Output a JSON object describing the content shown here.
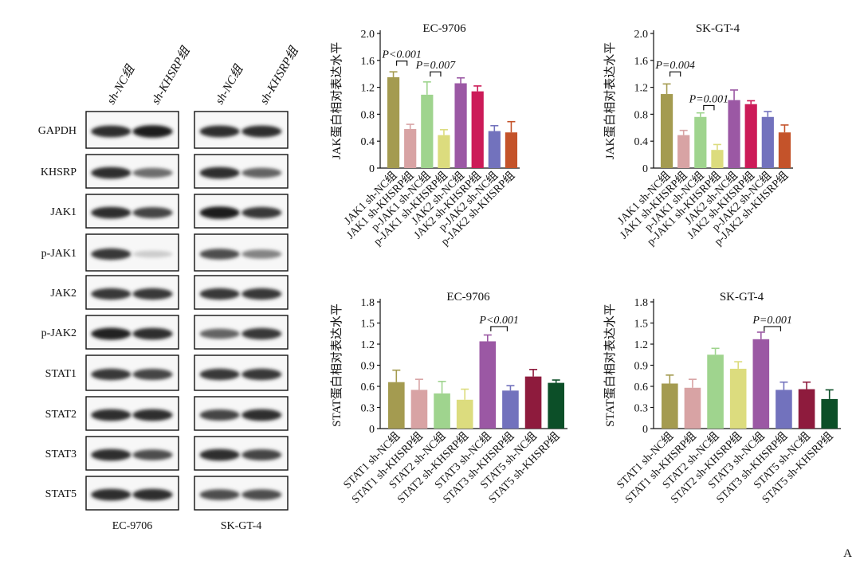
{
  "blot": {
    "lane_headers": [
      "sh-NC组",
      "sh-KHSRP组",
      "sh-NC组",
      "sh-KHSRP组"
    ],
    "cell_lines": [
      "EC-9706",
      "SK-GT-4"
    ],
    "proteins": [
      "GAPDH",
      "KHSRP",
      "JAK1",
      "p-JAK1",
      "JAK2",
      "p-JAK2",
      "STAT1",
      "STAT2",
      "STAT3",
      "STAT5"
    ],
    "band_intensity": {
      "EC-9706": [
        [
          0.85,
          0.95
        ],
        [
          0.85,
          0.55
        ],
        [
          0.85,
          0.75
        ],
        [
          0.8,
          0.1
        ],
        [
          0.8,
          0.8
        ],
        [
          0.9,
          0.85
        ],
        [
          0.8,
          0.75
        ],
        [
          0.85,
          0.85
        ],
        [
          0.85,
          0.7
        ],
        [
          0.85,
          0.85
        ]
      ],
      "SK-GT-4": [
        [
          0.85,
          0.85
        ],
        [
          0.85,
          0.6
        ],
        [
          0.95,
          0.8
        ],
        [
          0.7,
          0.45
        ],
        [
          0.8,
          0.8
        ],
        [
          0.6,
          0.8
        ],
        [
          0.8,
          0.8
        ],
        [
          0.75,
          0.85
        ],
        [
          0.85,
          0.75
        ],
        [
          0.7,
          0.7
        ]
      ]
    }
  },
  "palette": [
    "#a49b50",
    "#d8a3a4",
    "#9fd48e",
    "#dcdc7e",
    "#9b58a4",
    "#cc1b58",
    "#7272bd",
    "#c4532a",
    "#8e1b3d",
    "#0c4f28"
  ],
  "figure_letter": "A",
  "chart_data": [
    {
      "type": "bar",
      "title": "EC-9706",
      "ylabel": "JAK蛋白相对表达水平",
      "ylim": [
        0,
        2.0
      ],
      "yticks": [
        "0",
        "0.4",
        "0.8",
        "1.2",
        "1.6",
        "2.0"
      ],
      "categories": [
        "JAK1 sh-NC组",
        "JAK1 sh-KHSRP组",
        "p-JAK1 sh-NC组",
        "p-JAK1 sh-KHSRP组",
        "JAK2 sh-NC组",
        "JAK2 sh-KHSRP组",
        "p-JAK2 sh-NC组",
        "p-JAK2 sh-KHSRP组"
      ],
      "values": [
        1.35,
        0.58,
        1.09,
        0.49,
        1.26,
        1.14,
        0.55,
        0.53
      ],
      "errors": [
        0.08,
        0.07,
        0.19,
        0.08,
        0.08,
        0.08,
        0.08,
        0.16
      ],
      "colors": [
        0,
        1,
        2,
        3,
        4,
        5,
        6,
        7
      ],
      "annotations": [
        {
          "text": "P<0.001",
          "from": 0,
          "to": 1,
          "level": 1.59
        },
        {
          "text": "P=0.007",
          "from": 2,
          "to": 3,
          "level": 1.43
        }
      ]
    },
    {
      "type": "bar",
      "title": "SK-GT-4",
      "ylabel": "JAK蛋白相对表达水平",
      "ylim": [
        0,
        2.0
      ],
      "yticks": [
        "0",
        "0.4",
        "0.8",
        "1.2",
        "1.6",
        "2.0"
      ],
      "categories": [
        "JAK1 sh-NC组",
        "JAK1 sh-KHSRP组",
        "p-JAK1 sh-NC组",
        "p-JAK1 sh-KHSRP组",
        "JAK2 sh-NC组",
        "JAK2 sh-KHSRP组",
        "p-JAK2 sh-NC组",
        "p-JAK2 sh-KHSRP组"
      ],
      "values": [
        1.1,
        0.49,
        0.76,
        0.27,
        1.01,
        0.95,
        0.76,
        0.53
      ],
      "errors": [
        0.15,
        0.07,
        0.06,
        0.08,
        0.15,
        0.05,
        0.08,
        0.11
      ],
      "colors": [
        0,
        1,
        2,
        3,
        4,
        5,
        6,
        7
      ],
      "annotations": [
        {
          "text": "P=0.004",
          "from": 0,
          "to": 1,
          "level": 1.43
        },
        {
          "text": "P=0.001",
          "from": 2,
          "to": 3,
          "level": 0.93
        }
      ]
    },
    {
      "type": "bar",
      "title": "EC-9706",
      "ylabel": "STAT蛋白相对表达水平",
      "ylim": [
        0,
        1.8
      ],
      "yticks": [
        "0",
        "0.3",
        "0.6",
        "0.9",
        "1.2",
        "1.5",
        "1.8"
      ],
      "categories": [
        "STAT1 sh-NC组",
        "STAT1 sh-KHSRP组",
        "STAT2 sh-NC组",
        "STAT2 sh-KHSRP组",
        "STAT3 sh-NC组",
        "STAT3 sh-KHSRP组",
        "STAT5 sh-NC组",
        "STAT5 sh-KHSRP组"
      ],
      "values": [
        0.66,
        0.55,
        0.5,
        0.41,
        1.24,
        0.54,
        0.74,
        0.65
      ],
      "errors": [
        0.17,
        0.15,
        0.17,
        0.15,
        0.09,
        0.07,
        0.1,
        0.04
      ],
      "colors": [
        0,
        1,
        2,
        3,
        4,
        6,
        8,
        9
      ],
      "annotations": [
        {
          "text": "P<0.001",
          "from": 4,
          "to": 5,
          "level": 1.45
        }
      ]
    },
    {
      "type": "bar",
      "title": "SK-GT-4",
      "ylabel": "STAT蛋白相对表达水平",
      "ylim": [
        0,
        1.8
      ],
      "yticks": [
        "0",
        "0.3",
        "0.6",
        "0.9",
        "1.2",
        "1.5",
        "1.8"
      ],
      "categories": [
        "STAT1 sh-NC组",
        "STAT1 sh-KHSRP组",
        "STAT2 sh-NC组",
        "STAT2 sh-KHSRP组",
        "STAT3 sh-NC组",
        "STAT3 sh-KHSRP组",
        "STAT5 sh-NC组",
        "STAT5 sh-KHSRP组"
      ],
      "values": [
        0.64,
        0.58,
        1.05,
        0.85,
        1.27,
        0.55,
        0.56,
        0.42
      ],
      "errors": [
        0.12,
        0.12,
        0.09,
        0.1,
        0.1,
        0.11,
        0.1,
        0.13
      ],
      "colors": [
        0,
        1,
        2,
        3,
        4,
        6,
        8,
        9
      ],
      "annotations": [
        {
          "text": "P=0.001",
          "from": 4,
          "to": 5,
          "level": 1.45
        }
      ]
    }
  ]
}
